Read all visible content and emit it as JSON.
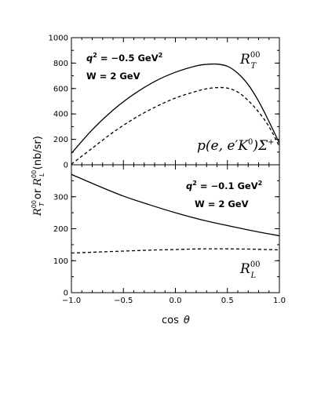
{
  "chart_data": [
    {
      "type": "line",
      "panel": "top",
      "xlim": [
        -1.0,
        1.0
      ],
      "ylim": [
        0,
        1000
      ],
      "y_ticks": [
        0,
        200,
        400,
        600,
        800,
        1000
      ],
      "grid": false,
      "annotations": {
        "q2": "q² = −0.5 GeV²",
        "w": "W = 2 GeV",
        "curve_label": "R_T^00",
        "reaction": "p(e, e′K⁰)Σ⁺"
      },
      "series": [
        {
          "style": "solid",
          "x": [
            -1.0,
            -0.8,
            -0.6,
            -0.4,
            -0.2,
            0.0,
            0.2,
            0.3,
            0.4,
            0.5,
            0.6,
            0.7,
            0.8,
            0.9,
            1.0
          ],
          "y": [
            90,
            275,
            430,
            555,
            655,
            728,
            778,
            790,
            792,
            775,
            720,
            630,
            500,
            340,
            170
          ]
        },
        {
          "style": "dashed",
          "x": [
            -1.0,
            -0.8,
            -0.6,
            -0.4,
            -0.2,
            0.0,
            0.2,
            0.3,
            0.4,
            0.5,
            0.6,
            0.7,
            0.8,
            0.9,
            1.0
          ],
          "y": [
            5,
            130,
            255,
            362,
            452,
            525,
            578,
            598,
            607,
            603,
            572,
            505,
            415,
            300,
            145
          ]
        }
      ]
    },
    {
      "type": "line",
      "panel": "bottom",
      "xlim": [
        -1.0,
        1.0
      ],
      "ylim": [
        0,
        400
      ],
      "y_ticks": [
        0,
        100,
        200,
        300
      ],
      "grid": false,
      "annotations": {
        "q2": "q² = −0.1 GeV²",
        "w": "W = 2 GeV",
        "curve_label": "R_L^00"
      },
      "series": [
        {
          "style": "solid",
          "x": [
            -1.0,
            -0.75,
            -0.5,
            -0.25,
            0.0,
            0.25,
            0.5,
            0.75,
            1.0
          ],
          "y": [
            370,
            335,
            302,
            275,
            250,
            228,
            210,
            193,
            178
          ]
        },
        {
          "style": "dashed",
          "x": [
            -1.0,
            -0.75,
            -0.5,
            -0.25,
            0.0,
            0.25,
            0.5,
            0.75,
            1.0
          ],
          "y": [
            124,
            127,
            130,
            133,
            135,
            137,
            137,
            136,
            134
          ]
        }
      ]
    }
  ],
  "labels": {
    "xlabel": "cos θ",
    "ylabel": "R_T^00 or R_L^00 (nb/sr)",
    "x_ticks": [
      "−1.0",
      "−0.5",
      "0.0",
      "0.5",
      "1.0"
    ],
    "top_q2": "q",
    "top_q2_rest": "2",
    "top_q2_val": "= −0.5 GeV",
    "top_w": "W = 2 GeV",
    "bot_q2_val": "= −0.1 GeV",
    "bot_w": "W = 2 GeV",
    "RT_main": "R",
    "RT_sub": "T",
    "RL_sub": "L",
    "sup00": "00",
    "reaction": "p(e, e′K",
    "reaction_sup0": "0",
    "reaction_end": ")Σ",
    "reaction_sup_plus": "+",
    "ylabel_mid": "or",
    "ylabel_unit": "(nb/sr)",
    "xlabel_cos": "cos",
    "xlabel_theta": "θ",
    "sup2": "2"
  }
}
